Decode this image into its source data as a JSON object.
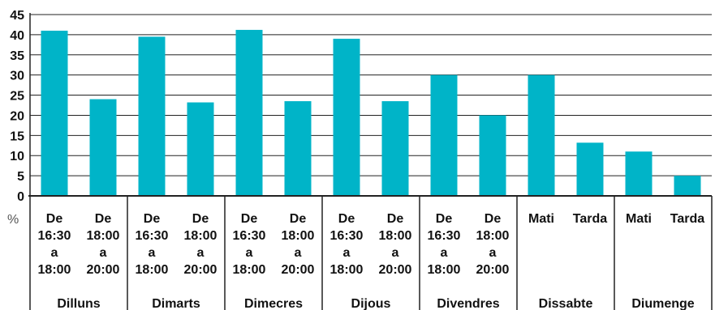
{
  "chart_data": {
    "type": "bar",
    "title": "",
    "xlabel": "",
    "ylabel": "",
    "unit": "%",
    "ylim": [
      0,
      45
    ],
    "yticks": [
      0,
      5,
      10,
      15,
      20,
      25,
      30,
      35,
      40,
      45
    ],
    "grid": true,
    "bar_color": "#00b4c8",
    "groups": [
      {
        "name": "Dilluns",
        "bars": [
          {
            "label": [
              "De",
              "16:30",
              "a",
              "18:00"
            ],
            "value": 41
          },
          {
            "label": [
              "De",
              "18:00",
              "a",
              "20:00"
            ],
            "value": 24
          }
        ]
      },
      {
        "name": "Dimarts",
        "bars": [
          {
            "label": [
              "De",
              "16:30",
              "a",
              "18:00"
            ],
            "value": 39.5
          },
          {
            "label": [
              "De",
              "18:00",
              "a",
              "20:00"
            ],
            "value": 23.2
          }
        ]
      },
      {
        "name": "Dimecres",
        "bars": [
          {
            "label": [
              "De",
              "16:30",
              "a",
              "18:00"
            ],
            "value": 41.2
          },
          {
            "label": [
              "De",
              "18:00",
              "a",
              "20:00"
            ],
            "value": 23.5
          }
        ]
      },
      {
        "name": "Dijous",
        "bars": [
          {
            "label": [
              "De",
              "16:30",
              "a",
              "18:00"
            ],
            "value": 39
          },
          {
            "label": [
              "De",
              "18:00",
              "a",
              "20:00"
            ],
            "value": 23.5
          }
        ]
      },
      {
        "name": "Divendres",
        "bars": [
          {
            "label": [
              "De",
              "16:30",
              "a",
              "18:00"
            ],
            "value": 30
          },
          {
            "label": [
              "De",
              "18:00",
              "a",
              "20:00"
            ],
            "value": 20
          }
        ]
      },
      {
        "name": "Dissabte",
        "bars": [
          {
            "label": [
              "Mati"
            ],
            "value": 30
          },
          {
            "label": [
              "Tarda"
            ],
            "value": 13.2
          }
        ]
      },
      {
        "name": "Diumenge",
        "bars": [
          {
            "label": [
              "Mati"
            ],
            "value": 11
          },
          {
            "label": [
              "Tarda"
            ],
            "value": 5
          }
        ]
      }
    ]
  }
}
